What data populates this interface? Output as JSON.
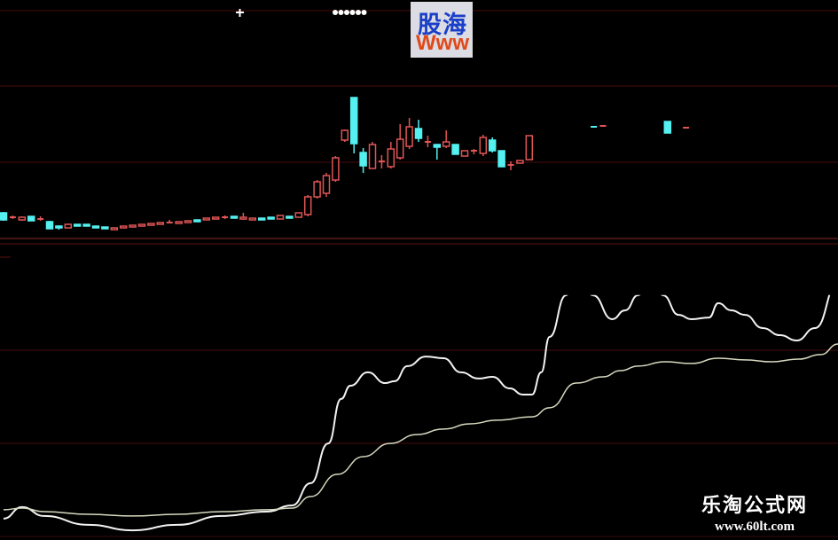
{
  "chart_data": [
    {
      "type": "candlestick",
      "title": "",
      "colors": {
        "up": "#e05555",
        "down": "#55f0f0",
        "grid": "#5a1010"
      },
      "ylim": [
        2.0,
        29.0
      ],
      "grid": true,
      "candles": [
        [
          0,
          6.0,
          5.2,
          6.1,
          5.1
        ],
        [
          1,
          5.5,
          5.5,
          5.7,
          5.3
        ],
        [
          2,
          5.2,
          5.5,
          5.6,
          5.1
        ],
        [
          3,
          5.6,
          5.1,
          5.6,
          5.1
        ],
        [
          4,
          5.3,
          5.3,
          5.6,
          5.1
        ],
        [
          5,
          5.0,
          4.2,
          5.1,
          4.2
        ],
        [
          6,
          4.5,
          4.3,
          4.6,
          4.1
        ],
        [
          7,
          4.3,
          4.7,
          4.8,
          4.3
        ],
        [
          8,
          4.7,
          4.5,
          4.7,
          4.5
        ],
        [
          9,
          4.7,
          4.5,
          4.7,
          4.5
        ],
        [
          10,
          4.5,
          4.3,
          4.5,
          4.3
        ],
        [
          11,
          4.4,
          4.2,
          4.4,
          4.2
        ],
        [
          12,
          4.1,
          4.3,
          4.3,
          4.1
        ],
        [
          13,
          4.3,
          4.5,
          4.5,
          4.3
        ],
        [
          14,
          4.4,
          4.6,
          4.6,
          4.4
        ],
        [
          15,
          4.5,
          4.7,
          4.7,
          4.5
        ],
        [
          16,
          4.6,
          4.8,
          4.8,
          4.6
        ],
        [
          17,
          4.7,
          4.9,
          4.9,
          4.7
        ],
        [
          18,
          4.9,
          4.9,
          5.2,
          4.8
        ],
        [
          19,
          4.8,
          5.0,
          5.0,
          4.8
        ],
        [
          20,
          4.9,
          5.1,
          5.1,
          4.9
        ],
        [
          21,
          5.2,
          5.0,
          5.2,
          5.0
        ],
        [
          22,
          5.2,
          5.4,
          5.4,
          5.2
        ],
        [
          23,
          5.3,
          5.5,
          5.5,
          5.3
        ],
        [
          24,
          5.5,
          5.5,
          5.7,
          5.3
        ],
        [
          25,
          5.6,
          5.4,
          5.6,
          5.4
        ],
        [
          26,
          5.3,
          5.5,
          6.0,
          5.2
        ],
        [
          27,
          5.2,
          5.4,
          5.4,
          5.2
        ],
        [
          28,
          5.4,
          5.2,
          5.4,
          5.2
        ],
        [
          29,
          5.5,
          5.3,
          5.5,
          5.3
        ],
        [
          30,
          5.3,
          5.7,
          5.7,
          5.3
        ],
        [
          31,
          5.6,
          5.4,
          5.6,
          5.4
        ],
        [
          32,
          5.5,
          6.0,
          6.0,
          5.5
        ],
        [
          33,
          5.8,
          7.8,
          8.0,
          5.6
        ],
        [
          34,
          7.8,
          9.5,
          9.7,
          7.6
        ],
        [
          35,
          8.2,
          10.2,
          10.5,
          7.8
        ],
        [
          36,
          9.7,
          12.2,
          12.4,
          9.5
        ],
        [
          37,
          14.2,
          15.3,
          15.4,
          14.0
        ],
        [
          38,
          19.0,
          13.8,
          19.0,
          12.7
        ],
        [
          39,
          12.8,
          11.3,
          13.3,
          10.5
        ],
        [
          40,
          11.0,
          13.7,
          14.0,
          11.0
        ],
        [
          41,
          11.8,
          11.8,
          12.5,
          11.0
        ],
        [
          42,
          11.2,
          13.2,
          14.0,
          11.0
        ],
        [
          43,
          12.2,
          14.3,
          16.0,
          12.0
        ],
        [
          44,
          13.5,
          15.7,
          16.7,
          13.2
        ],
        [
          45,
          15.5,
          14.4,
          16.5,
          14.0
        ],
        [
          46,
          14.0,
          14.0,
          14.7,
          13.4
        ],
        [
          47,
          13.7,
          13.4,
          13.7,
          12.0
        ],
        [
          48,
          13.5,
          14.0,
          15.3,
          13.3
        ],
        [
          49,
          13.7,
          12.6,
          13.7,
          12.6
        ],
        [
          50,
          12.4,
          13.0,
          13.0,
          12.4
        ],
        [
          51,
          13.0,
          13.0,
          13.2,
          12.6
        ],
        [
          52,
          12.7,
          14.5,
          14.8,
          12.4
        ],
        [
          53,
          14.2,
          13.0,
          14.5,
          12.8
        ],
        [
          54,
          13.0,
          11.2,
          13.0,
          11.2
        ],
        [
          55,
          11.4,
          11.4,
          11.8,
          10.8
        ],
        [
          56,
          11.6,
          11.9,
          11.9,
          11.6
        ],
        [
          57,
          12.0,
          14.7,
          14.7,
          12.0
        ],
        [
          64,
          15.7,
          15.6,
          15.7,
          15.6
        ],
        [
          65,
          15.7,
          15.8,
          15.9,
          15.7
        ],
        [
          72,
          16.3,
          15.0,
          16.3,
          15.0
        ],
        [
          74,
          15.6,
          15.6,
          15.7,
          15.5
        ]
      ]
    },
    {
      "type": "line",
      "title": "",
      "ylim": [
        0,
        99
      ],
      "grid": true,
      "colors": {
        "fast": "#f2f2f2",
        "slow": "#d8d8c0"
      },
      "series": [
        {
          "values": [
            [
              0,
              5.6
            ],
            [
              2,
              10.4
            ],
            [
              4.4,
              6.7
            ],
            [
              9.2,
              3.0
            ],
            [
              14,
              0.7
            ],
            [
              18.8,
              3.0
            ],
            [
              23.7,
              6.7
            ],
            [
              28.5,
              8.5
            ],
            [
              31.3,
              11.1
            ],
            [
              33.3,
              20.4
            ],
            [
              35.2,
              37.0
            ],
            [
              36.6,
              55.6
            ],
            [
              37.6,
              61.1
            ],
            [
              39.5,
              66.7
            ],
            [
              41.4,
              62.2
            ],
            [
              42.4,
              63.0
            ],
            [
              43.8,
              69.3
            ],
            [
              45.8,
              73.3
            ],
            [
              47.7,
              72.6
            ],
            [
              49.6,
              66.7
            ],
            [
              51.5,
              64.1
            ],
            [
              53,
              64.8
            ],
            [
              54.9,
              60.0
            ],
            [
              56.3,
              57.4
            ],
            [
              57.3,
              57.4
            ],
            [
              58.3,
              66.7
            ],
            [
              59.2,
              81.5
            ],
            [
              61,
              98.9
            ],
            [
              62.1,
              111
            ],
            [
              63.9,
              98.9
            ],
            [
              66,
              88.9
            ],
            [
              67.4,
              92.6
            ],
            [
              68.8,
              98.9
            ],
            [
              70.3,
              109
            ],
            [
              71.5,
              98.9
            ],
            [
              73.2,
              90.7
            ],
            [
              74.6,
              88.9
            ],
            [
              76.5,
              89.6
            ],
            [
              77.5,
              95.6
            ],
            [
              78.9,
              92.6
            ],
            [
              80.4,
              90.7
            ],
            [
              82.3,
              85.2
            ],
            [
              84.2,
              82.2
            ],
            [
              86,
              80.0
            ],
            [
              88,
              85.2
            ],
            [
              90.5,
              104.4
            ]
          ]
        },
        {
          "values": [
            [
              0,
              9.3
            ],
            [
              2,
              10.0
            ],
            [
              4.4,
              8.5
            ],
            [
              9.2,
              7.4
            ],
            [
              14,
              6.7
            ],
            [
              18.8,
              7.4
            ],
            [
              23.7,
              8.5
            ],
            [
              28.5,
              9.3
            ],
            [
              31.3,
              10.0
            ],
            [
              33.3,
              14.8
            ],
            [
              36.2,
              24.1
            ],
            [
              39,
              31.5
            ],
            [
              41.9,
              37.0
            ],
            [
              44.8,
              40.7
            ],
            [
              47.7,
              43.0
            ],
            [
              50.6,
              45.2
            ],
            [
              53.5,
              46.7
            ],
            [
              57.3,
              48.1
            ],
            [
              59.2,
              51.9
            ],
            [
              62.1,
              62.2
            ],
            [
              65,
              64.8
            ],
            [
              66.9,
              67.4
            ],
            [
              68.8,
              69.3
            ],
            [
              71.7,
              71.1
            ],
            [
              74.6,
              70.4
            ],
            [
              77.5,
              72.6
            ],
            [
              80.4,
              71.9
            ],
            [
              83.3,
              71.1
            ],
            [
              86.2,
              72.2
            ],
            [
              88.6,
              74.1
            ],
            [
              90.5,
              78.5
            ]
          ]
        }
      ]
    }
  ],
  "logo": {
    "line1": "股海",
    "line2": "Www"
  },
  "watermark": {
    "name": "乐淘公式网",
    "url": "www.60lt.com"
  }
}
